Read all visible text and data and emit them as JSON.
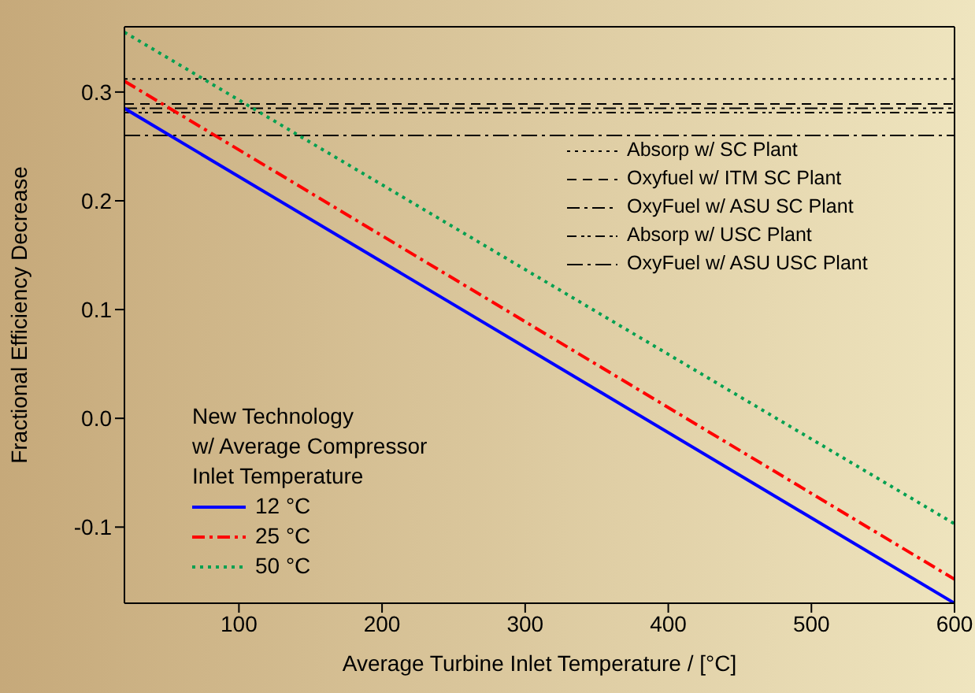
{
  "chart_data": {
    "type": "line",
    "xlabel": "Average Turbine Inlet Temperature / [°C]",
    "ylabel": "Fractional Efficiency Decrease",
    "legend_title": "New Technology\nw/ Average Compressor\nInlet Temperature",
    "legend": "bottom left",
    "xlim": [
      20,
      600
    ],
    "xticks": [
      100,
      200,
      300,
      400,
      500,
      600
    ],
    "ylim": [
      -0.17,
      0.36
    ],
    "yticks": [
      -0.1,
      {
        "value": 0,
        "label": "0.0"
      },
      0.1,
      0.2,
      0.3
    ],
    "x": [
      20,
      600
    ],
    "series": [
      {
        "name": "12 °C",
        "color": "#0000ff",
        "values": [
          0.285,
          -0.17
        ],
        "line_style": "solid"
      },
      {
        "name": "25 °C",
        "color": "#ff0000",
        "values": [
          0.31,
          -0.148
        ],
        "line_style": "dashdot"
      },
      {
        "name": "50 °C",
        "color": "#00a050",
        "values": [
          0.355,
          -0.097
        ],
        "line_style": "dotted"
      }
    ],
    "ref_lines": [
      {
        "axis": "y",
        "value": 0.312,
        "label": "Absorp w/ SC Plant",
        "color": "#000000",
        "line_style": "dotted"
      },
      {
        "axis": "y",
        "value": 0.289,
        "label": "Oxyfuel w/ ITM SC Plant",
        "color": "#000000",
        "line_style": "dashed"
      },
      {
        "axis": "y",
        "value": 0.285,
        "label": "OxyFuel w/ ASU SC Plant",
        "color": "#000000",
        "line_style": "dashdot"
      },
      {
        "axis": "y",
        "value": 0.281,
        "label": "Absorp w/ USC Plant",
        "color": "#000000",
        "line_style": "dashdotdot"
      },
      {
        "axis": "y",
        "value": 0.26,
        "label": "OxyFuel w/ ASU USC Plant",
        "color": "#000000",
        "line_style": "longdashdot"
      }
    ]
  }
}
